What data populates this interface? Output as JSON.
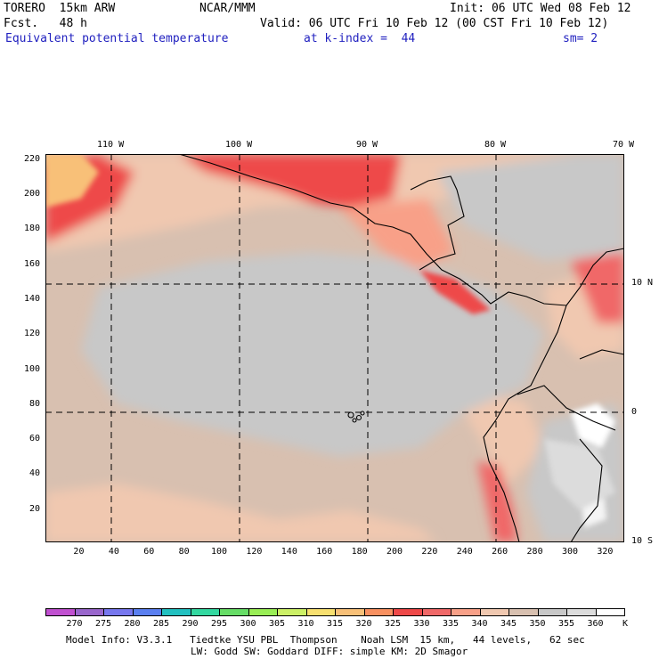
{
  "header": {
    "model": "TORERO  15km ARW",
    "org": "NCAR/MMM",
    "init": "Init: 06 UTC Wed 08 Feb 12",
    "fcst": "Fcst.   48 h",
    "valid": "Valid: 06 UTC Fri 10 Feb 12 (00 CST Fri 10 Feb 12)",
    "field": "Equivalent potential temperature",
    "level": "at k-index =  44",
    "smooth": "sm= 2"
  },
  "map": {
    "lon_labels": [
      "110 W",
      "100 W",
      "90 W",
      "80 W",
      "70 W"
    ],
    "lat_labels": [
      "10 N",
      "0",
      "10 S"
    ],
    "x_ticks": [
      "20",
      "40",
      "60",
      "80",
      "100",
      "120",
      "140",
      "160",
      "180",
      "200",
      "220",
      "240",
      "260",
      "280",
      "300",
      "320"
    ],
    "y_ticks": [
      "220",
      "200",
      "180",
      "160",
      "140",
      "120",
      "100",
      "80",
      "60",
      "40",
      "20"
    ],
    "x_grid_range": [
      1,
      331
    ],
    "y_grid_range": [
      1,
      223
    ],
    "grid_style": "dashed"
  },
  "colorbar": {
    "labels": [
      "270",
      "275",
      "280",
      "285",
      "290",
      "295",
      "300",
      "305",
      "310",
      "315",
      "320",
      "325",
      "330",
      "335",
      "340",
      "345",
      "350",
      "355",
      "360"
    ],
    "unit": "K",
    "colors": [
      "#c050d0",
      "#9966cc",
      "#7777ee",
      "#5a7ff0",
      "#22c0c0",
      "#33d8a0",
      "#66dd66",
      "#99ee55",
      "#ccf066",
      "#f8e070",
      "#f8c078",
      "#f89060",
      "#ee4848",
      "#f06868",
      "#f8a088",
      "#f0c8b0",
      "#d8c0b0",
      "#c8c8c8",
      "#dcdcdc",
      "#ffffff"
    ]
  },
  "footer": {
    "line1": "Model Info: V3.3.1   Tiedtke YSU PBL  Thompson    Noah LSM  15 km,   44 levels,   62 sec",
    "line2": "LW: Godd SW: Goddard DIFF: simple KM: 2D Smagor"
  }
}
